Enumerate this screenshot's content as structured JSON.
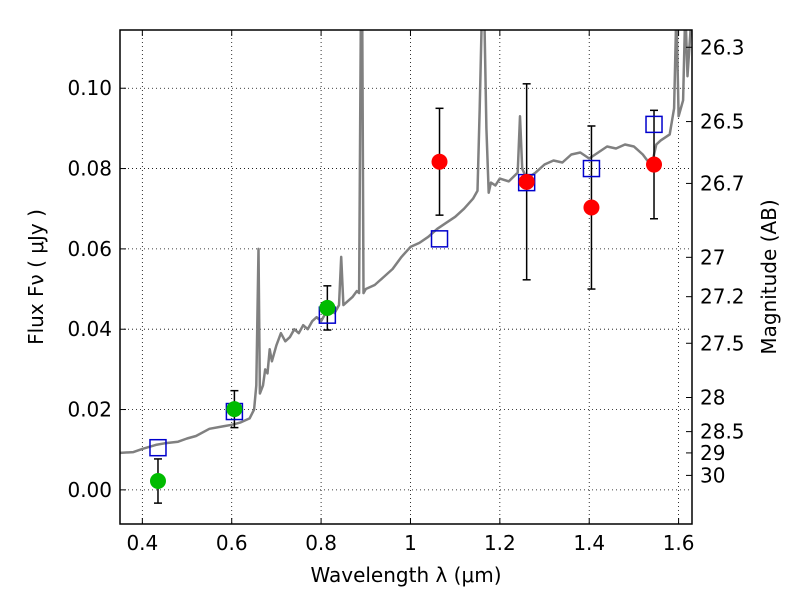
{
  "chart_data": {
    "type": "scatter",
    "xlabel": "Wavelength  λ (μm)",
    "ylabel": "Flux  Fν  ( μJy )",
    "y2label": "Magnitude (AB)",
    "xlim": [
      0.35,
      1.63
    ],
    "ylim": [
      -0.0085,
      0.1145
    ],
    "xticks": [
      0.4,
      0.6,
      0.8,
      1.0,
      1.2,
      1.4,
      1.6
    ],
    "xtick_labels": [
      "0.4",
      "0.6",
      "0.8",
      "1",
      "1.2",
      "1.4",
      "1.6"
    ],
    "yticks": [
      0.0,
      0.02,
      0.04,
      0.06,
      0.08,
      0.1
    ],
    "ytick_labels": [
      "0.00",
      "0.02",
      "0.04",
      "0.06",
      "0.08",
      "0.10"
    ],
    "magnitude_ticks": [
      {
        "label": "26.3",
        "flux": 0.1102
      },
      {
        "label": "26.5",
        "flux": 0.0917
      },
      {
        "label": "26.7",
        "flux": 0.0763
      },
      {
        "label": "27",
        "flux": 0.0579
      },
      {
        "label": "27.2",
        "flux": 0.0481
      },
      {
        "label": "27.5",
        "flux": 0.0365
      },
      {
        "label": "28",
        "flux": 0.023
      },
      {
        "label": "28.5",
        "flux": 0.0145
      },
      {
        "label": "29",
        "flux": 0.0092
      },
      {
        "label": "30",
        "flux": 0.0036
      }
    ],
    "grid": true,
    "model_spectrum": {
      "color": "#808080",
      "points": [
        [
          0.35,
          0.0092
        ],
        [
          0.38,
          0.0094
        ],
        [
          0.4,
          0.0102
        ],
        [
          0.43,
          0.0112
        ],
        [
          0.45,
          0.0116
        ],
        [
          0.48,
          0.012
        ],
        [
          0.5,
          0.0128
        ],
        [
          0.52,
          0.0134
        ],
        [
          0.55,
          0.0152
        ],
        [
          0.58,
          0.0158
        ],
        [
          0.6,
          0.0162
        ],
        [
          0.62,
          0.0168
        ],
        [
          0.64,
          0.0178
        ],
        [
          0.65,
          0.02
        ],
        [
          0.655,
          0.026
        ],
        [
          0.66,
          0.06
        ],
        [
          0.663,
          0.024
        ],
        [
          0.67,
          0.026
        ],
        [
          0.675,
          0.03
        ],
        [
          0.68,
          0.029
        ],
        [
          0.685,
          0.035
        ],
        [
          0.69,
          0.032
        ],
        [
          0.7,
          0.036
        ],
        [
          0.71,
          0.039
        ],
        [
          0.72,
          0.037
        ],
        [
          0.73,
          0.038
        ],
        [
          0.74,
          0.04
        ],
        [
          0.75,
          0.039
        ],
        [
          0.76,
          0.041
        ],
        [
          0.77,
          0.04
        ],
        [
          0.78,
          0.042
        ],
        [
          0.79,
          0.043
        ],
        [
          0.8,
          0.042
        ],
        [
          0.81,
          0.044
        ],
        [
          0.82,
          0.045
        ],
        [
          0.83,
          0.044
        ],
        [
          0.84,
          0.046
        ],
        [
          0.845,
          0.058
        ],
        [
          0.85,
          0.046
        ],
        [
          0.86,
          0.047
        ],
        [
          0.87,
          0.048
        ],
        [
          0.88,
          0.0495
        ],
        [
          0.885,
          0.049
        ],
        [
          0.889,
          0.12
        ],
        [
          0.892,
          0.12
        ],
        [
          0.895,
          0.049
        ],
        [
          0.9,
          0.05
        ],
        [
          0.92,
          0.051
        ],
        [
          0.94,
          0.053
        ],
        [
          0.96,
          0.055
        ],
        [
          0.98,
          0.058
        ],
        [
          1.0,
          0.0605
        ],
        [
          1.02,
          0.0615
        ],
        [
          1.04,
          0.063
        ],
        [
          1.06,
          0.065
        ],
        [
          1.08,
          0.0665
        ],
        [
          1.1,
          0.068
        ],
        [
          1.12,
          0.07
        ],
        [
          1.14,
          0.0725
        ],
        [
          1.15,
          0.0745
        ],
        [
          1.155,
          0.095
        ],
        [
          1.16,
          0.12
        ],
        [
          1.165,
          0.12
        ],
        [
          1.17,
          0.09
        ],
        [
          1.175,
          0.074
        ],
        [
          1.18,
          0.0765
        ],
        [
          1.19,
          0.0758
        ],
        [
          1.2,
          0.0775
        ],
        [
          1.22,
          0.0768
        ],
        [
          1.24,
          0.079
        ],
        [
          1.245,
          0.093
        ],
        [
          1.25,
          0.08
        ],
        [
          1.26,
          0.0775
        ],
        [
          1.28,
          0.079
        ],
        [
          1.3,
          0.081
        ],
        [
          1.32,
          0.082
        ],
        [
          1.34,
          0.0815
        ],
        [
          1.36,
          0.0835
        ],
        [
          1.38,
          0.084
        ],
        [
          1.4,
          0.0825
        ],
        [
          1.42,
          0.084
        ],
        [
          1.44,
          0.0855
        ],
        [
          1.46,
          0.085
        ],
        [
          1.48,
          0.086
        ],
        [
          1.5,
          0.0855
        ],
        [
          1.52,
          0.0835
        ],
        [
          1.53,
          0.082
        ],
        [
          1.54,
          0.081
        ],
        [
          1.55,
          0.086
        ],
        [
          1.56,
          0.087
        ],
        [
          1.58,
          0.0885
        ],
        [
          1.59,
          0.095
        ],
        [
          1.595,
          0.12
        ],
        [
          1.6,
          0.093
        ],
        [
          1.61,
          0.097
        ],
        [
          1.615,
          0.12
        ],
        [
          1.62,
          0.103
        ],
        [
          1.63,
          0.12
        ]
      ]
    },
    "model_photometry": {
      "color": "#0000cc",
      "marker": "open-square",
      "points": [
        [
          0.435,
          0.0105
        ],
        [
          0.606,
          0.0195
        ],
        [
          0.814,
          0.0435
        ],
        [
          1.065,
          0.0625
        ],
        [
          1.26,
          0.0765
        ],
        [
          1.405,
          0.08
        ],
        [
          1.545,
          0.091
        ]
      ]
    },
    "detections": {
      "color": "#00bb00",
      "points": [
        {
          "x": 0.435,
          "y": 0.0022,
          "err": 0.0055
        },
        {
          "x": 0.606,
          "y": 0.0201,
          "err": 0.0046
        },
        {
          "x": 0.814,
          "y": 0.0453,
          "err": 0.0055
        }
      ]
    },
    "upper_limits": {
      "color": "#ff0000",
      "points": [
        {
          "x": 1.065,
          "y": 0.0817,
          "err": 0.0133
        },
        {
          "x": 1.26,
          "y": 0.0767,
          "err": 0.0244
        },
        {
          "x": 1.405,
          "y": 0.0703,
          "err": 0.0203
        },
        {
          "x": 1.545,
          "y": 0.081,
          "err": 0.0135
        }
      ]
    }
  }
}
